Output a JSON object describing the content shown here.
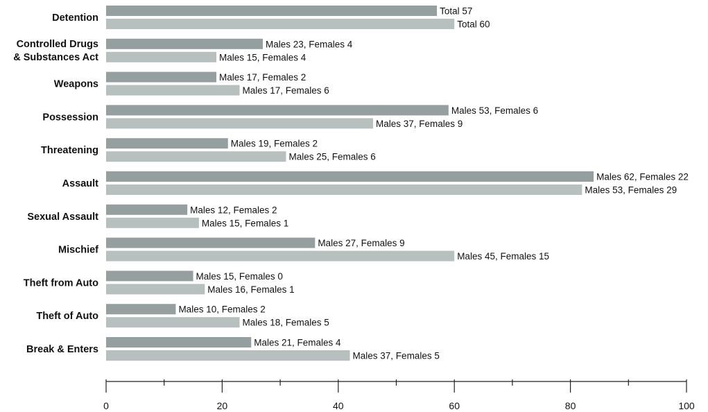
{
  "chart_data": {
    "type": "bar",
    "orientation": "horizontal",
    "categories": [
      "Detention",
      "Controlled Drugs & Substances Act",
      "Weapons",
      "Possession",
      "Threatening",
      "Assault",
      "Sexual Assault",
      "Mischief",
      "Theft from Auto",
      "Theft of Auto",
      "Break & Enters"
    ],
    "series": [
      {
        "color": "#959f9f",
        "values": [
          57,
          27,
          19,
          59,
          21,
          84,
          14,
          36,
          15,
          12,
          25
        ],
        "labels": [
          "Total 57",
          "Males 23, Females 4",
          "Males 17, Females 2",
          "Males 53, Females 6",
          "Males 19, Females 2",
          "Males 62, Females 22",
          "Males 12, Females 2",
          "Males 27, Females 9",
          "Males 15, Females 0",
          "Males 10, Females 2",
          "Males 21, Females 4"
        ]
      },
      {
        "color": "#b8bfbf",
        "values": [
          60,
          19,
          23,
          46,
          31,
          82,
          16,
          60,
          17,
          23,
          42
        ],
        "labels": [
          "Total 60",
          "Males 15, Females 4",
          "Males 17, Females 6",
          "Males 37, Females 9",
          "Males 25, Females 6",
          "Males 53, Females 29",
          "Males 15, Females 1",
          "Males 45, Females 15",
          "Males 16, Females 1",
          "Males 18, Females 5",
          "Males 37, Females 5"
        ]
      }
    ],
    "xlim": [
      0,
      100
    ],
    "major_ticks": [
      0,
      20,
      40,
      60,
      80,
      100
    ],
    "minor_ticks": [
      10,
      30,
      50,
      70,
      90
    ],
    "grid": false,
    "legend": "none"
  }
}
